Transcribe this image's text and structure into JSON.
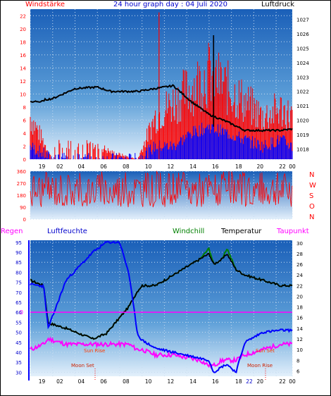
{
  "top_panel": {
    "left_label": "Windstärke",
    "title": "24 hour graph day : 04 Juli 2020",
    "right_label": "Luftdruck",
    "left_ticks": [
      "22",
      "20",
      "18",
      "16",
      "14",
      "12",
      "10",
      "8",
      "6",
      "4",
      "2",
      "0"
    ],
    "right_ticks": [
      "1027",
      "1026",
      "1025",
      "1024",
      "1023",
      "1022",
      "1021",
      "1020",
      "1019",
      "1018"
    ],
    "x_ticks": [
      "19",
      "02",
      "04",
      "06",
      "08",
      "10",
      "12",
      "14",
      "16",
      "18",
      "20",
      "22",
      "00"
    ]
  },
  "mid_panel": {
    "left_ticks": [
      "360",
      "270",
      "180",
      "90",
      "0"
    ],
    "direction_letters": [
      "N",
      "W",
      "S",
      "O",
      "N"
    ]
  },
  "bottom_panel": {
    "label_regen": "Regen",
    "label_luftfeuchte": "Luftfeuchte",
    "label_windchill": "Windchill",
    "label_temperatur": "Temperatur",
    "label_taupunkt": "Taupunkt",
    "left_ticks": [
      "95",
      "90",
      "85",
      "80",
      "75",
      "70",
      "65",
      "60",
      "55",
      "50",
      "45",
      "40",
      "35",
      "30"
    ],
    "rain_zero": "0",
    "right_ticks": [
      "30",
      "28",
      "26",
      "24",
      "22",
      "20",
      "18",
      "16",
      "14",
      "12",
      "10",
      "8",
      "6"
    ],
    "x_ticks": [
      "19",
      "02",
      "04",
      "06",
      "08",
      "10",
      "12",
      "14",
      "16",
      "18",
      "20",
      "22",
      "00"
    ],
    "x_extra": "22",
    "sun_rise": "Sun Rise",
    "sun_set": "Sun Set",
    "moon_set": "Moon Set",
    "moon_rise": "Moon Rise"
  },
  "colors": {
    "wind_gust": "#ff0000",
    "wind_speed": "#0000ff",
    "pressure": "#000000",
    "humidity": "#0000ff",
    "temperature": "#000000",
    "dewpoint": "#ff00ff",
    "windchill": "#008000",
    "rain_line": "#ff00ff"
  },
  "chart_data": [
    {
      "type": "line",
      "title": "24 hour graph day : 04 Juli 2020",
      "ylabel": "Windstärke",
      "y2label": "Luftdruck",
      "ylim": [
        0,
        23
      ],
      "y2lim": [
        1017.3,
        1027.7
      ],
      "x_hours": [
        0,
        2.5,
        5,
        7.5,
        9,
        12,
        14,
        16,
        18,
        20,
        22,
        24,
        26,
        28,
        29.3
      ],
      "series": [
        {
          "name": "Luftdruck",
          "axis": "right",
          "values": [
            1021.3,
            1021.5,
            1022.2,
            1022.3,
            1022.0,
            1022.0,
            1022.2,
            1022.4,
            1021.3,
            1020.4,
            1019.9,
            1019.3,
            1019.3,
            1019.3,
            1019.4
          ]
        },
        {
          "name": "Windboen",
          "axis": "left",
          "values": [
            6,
            0,
            2,
            2,
            1,
            0,
            6,
            8,
            10,
            12,
            10,
            8,
            6,
            7,
            6
          ]
        },
        {
          "name": "Windgeschwindigkeit",
          "axis": "left",
          "values": [
            2,
            0,
            0,
            0,
            0,
            0,
            2,
            2,
            4,
            5,
            4,
            3,
            2,
            3,
            2
          ]
        }
      ]
    },
    {
      "type": "scatter",
      "ylabel": "Windrichtung",
      "ylim": [
        0,
        360
      ],
      "note": "dense red wind direction trace fluctuating mostly between 90 and 360"
    },
    {
      "type": "line",
      "ylabel": "Luftfeuchte",
      "y2label": "Temperatur",
      "ylim": [
        28,
        96
      ],
      "y2lim": [
        5,
        30.5
      ],
      "x_hours": [
        0,
        1.5,
        2,
        4,
        7,
        8.5,
        10,
        11,
        12,
        12.5,
        14,
        16,
        19,
        20,
        20.5,
        21.5,
        22,
        23,
        24,
        26,
        28,
        29.3
      ],
      "series": [
        {
          "name": "Luftfeuchte",
          "axis": "left",
          "values": [
            74,
            73,
            52,
            76,
            90,
            95,
            95,
            80,
            49,
            46,
            42,
            40,
            37,
            36,
            30,
            33,
            34,
            30,
            45,
            50,
            51,
            51
          ]
        },
        {
          "name": "Temperatur",
          "axis": "right",
          "values": [
            23,
            22,
            15,
            14,
            12,
            13,
            16,
            18,
            21,
            22,
            22,
            24,
            27,
            28,
            26,
            27,
            28,
            25,
            24,
            23,
            22,
            22
          ]
        },
        {
          "name": "Taupunkt",
          "axis": "right",
          "values": [
            10,
            11,
            12,
            11,
            11,
            11,
            11,
            11,
            10,
            10,
            9,
            9,
            8,
            7,
            7,
            8,
            8,
            8,
            9,
            10,
            11,
            11
          ]
        },
        {
          "name": "Windchill",
          "axis": "right",
          "values": [
            23,
            22,
            15,
            14,
            12,
            13,
            16,
            18,
            21,
            22,
            22,
            24,
            27,
            29,
            26,
            27,
            29,
            25,
            24,
            23,
            22,
            22
          ]
        }
      ],
      "rain": 0
    }
  ]
}
